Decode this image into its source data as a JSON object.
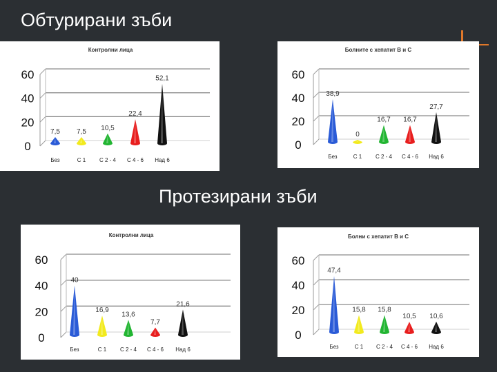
{
  "slide": {
    "title_top": "Обтурирани зъби",
    "title_middle": "Протезирани зъби",
    "accent_color": "#e0782a",
    "background_color": "#2b2f33"
  },
  "colors": [
    "#2a5bd7",
    "#f2ea1e",
    "#22b532",
    "#e81e1e",
    "#111111"
  ],
  "chart_data": [
    {
      "type": "bar",
      "title": "Контролни лица",
      "categories": [
        "Без",
        "С 1",
        "С 2 - 4",
        "С 4 - 6",
        "Над 6"
      ],
      "values": [
        7.5,
        7.5,
        10.5,
        22.4,
        52.1
      ],
      "value_labels": [
        "7,5",
        "7,5",
        "10,5",
        "22,4",
        "52,1"
      ],
      "yticks": [
        "0",
        "20",
        "40",
        "60"
      ],
      "ylim": [
        0,
        60
      ],
      "grid": true
    },
    {
      "type": "bar",
      "title": "Болните с хепатит В и С",
      "categories": [
        "Без",
        "С 1",
        "С 2 - 4",
        "С 4 - 6",
        "Над 6"
      ],
      "values": [
        38.9,
        0,
        16.7,
        16.7,
        27.7
      ],
      "value_labels": [
        "38,9",
        "0",
        "16,7",
        "16,7",
        "27,7"
      ],
      "yticks": [
        "0",
        "20",
        "40",
        "60"
      ],
      "ylim": [
        0,
        60
      ],
      "grid": true
    },
    {
      "type": "bar",
      "title": "Контролни лица",
      "categories": [
        "Без",
        "С 1",
        "С 2 - 4",
        "С 4 - 6",
        "Над 6"
      ],
      "values": [
        40,
        16.9,
        13.6,
        7.7,
        21.6
      ],
      "value_labels": [
        "40",
        "16,9",
        "13,6",
        "7,7",
        "21,6"
      ],
      "yticks": [
        "0",
        "20",
        "40",
        "60"
      ],
      "ylim": [
        0,
        60
      ],
      "grid": true
    },
    {
      "type": "bar",
      "title": "Болни с хепатит В и С",
      "categories": [
        "Без",
        "С 1",
        "С 2 - 4",
        "С 4 - 6",
        "Над 6"
      ],
      "values": [
        47.4,
        15.8,
        15.8,
        10.5,
        10.6
      ],
      "value_labels": [
        "47,4",
        "15,8",
        "15,8",
        "10,5",
        "10,6"
      ],
      "yticks": [
        "0",
        "20",
        "40",
        "60"
      ],
      "ylim": [
        0,
        60
      ],
      "grid": true
    }
  ]
}
